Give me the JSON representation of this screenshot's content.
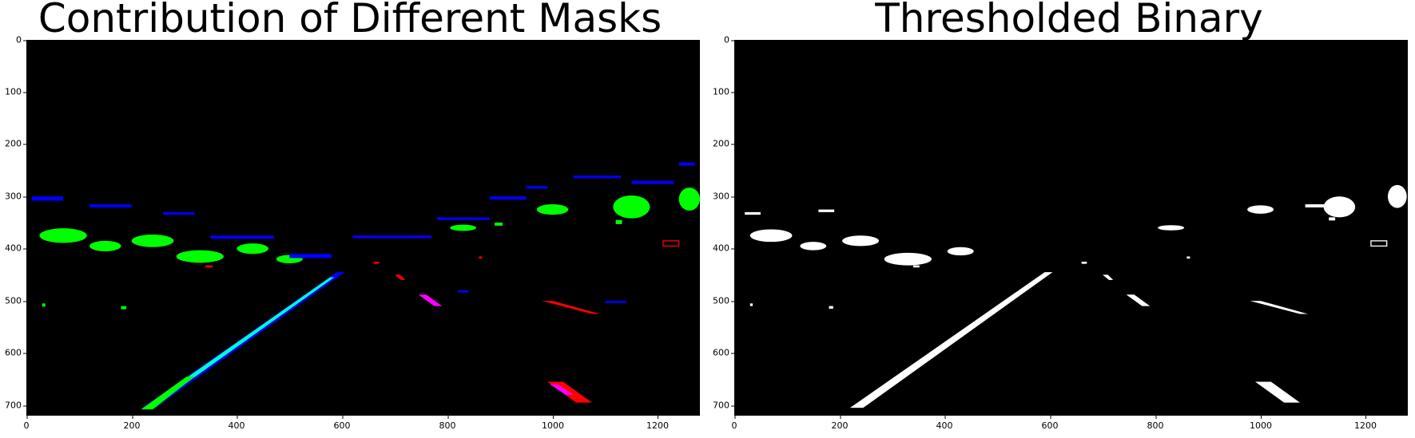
{
  "panels": [
    {
      "title": "Contribution of Different Masks",
      "x_ticks": [
        "0",
        "200",
        "400",
        "600",
        "800",
        "1000",
        "1200"
      ],
      "y_ticks": [
        "0",
        "100",
        "200",
        "300",
        "400",
        "500",
        "600",
        "700"
      ]
    },
    {
      "title": "Thresholded Binary",
      "x_ticks": [
        "0",
        "200",
        "400",
        "600",
        "800",
        "1000",
        "1200"
      ],
      "y_ticks": [
        "0",
        "100",
        "200",
        "300",
        "400",
        "500",
        "600",
        "700"
      ]
    }
  ],
  "colors": {
    "background": "#000000",
    "mask_green": "#00ff00",
    "mask_blue": "#0000ff",
    "mask_cyan": "#00ffcc",
    "mask_red": "#ff0000",
    "mask_magenta": "#ff00ff",
    "binary": "#ffffff"
  }
}
